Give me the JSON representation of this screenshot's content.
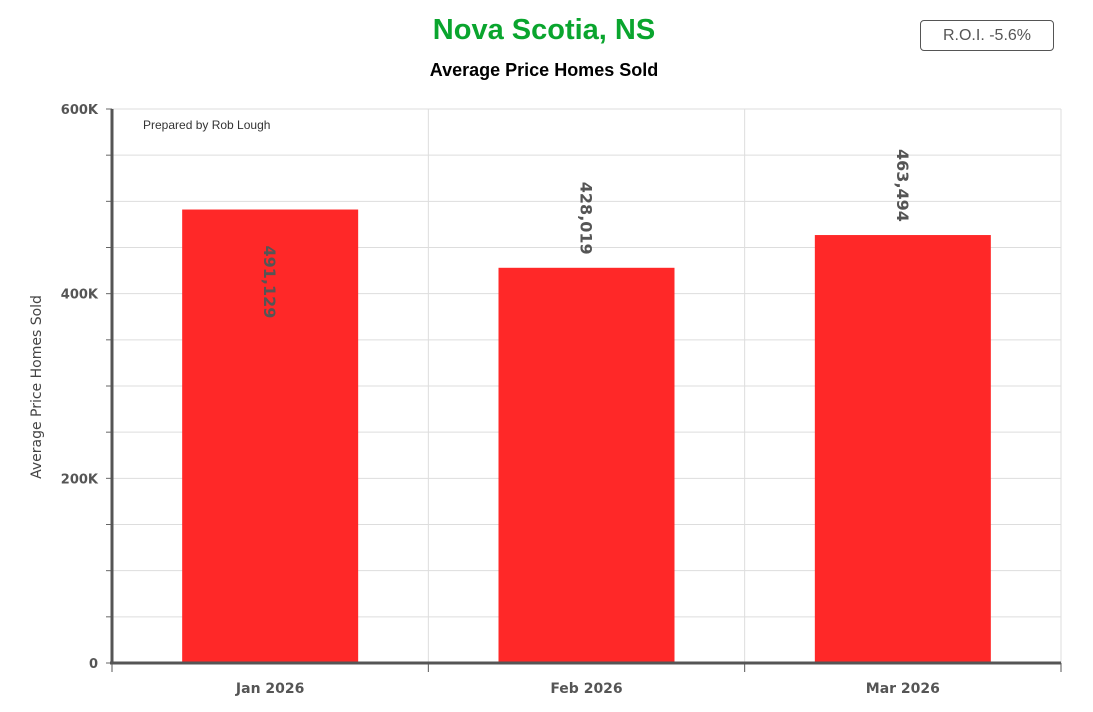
{
  "header": {
    "title": "Nova Scotia, NS",
    "subtitle": "Average Price Homes Sold",
    "roi_badge": "R.O.I. -5.6%"
  },
  "colors": {
    "title": "#0aa52e",
    "bar": "#ff2828"
  },
  "chart_data": {
    "type": "bar",
    "categories": [
      "Jan 2026",
      "Feb 2026",
      "Mar 2026"
    ],
    "values": [
      491129,
      428019,
      463494
    ],
    "value_labels": [
      "491,129",
      "428,019",
      "463,494"
    ],
    "ylabel": "Average Price Homes Sold",
    "ylim": [
      0,
      600000
    ],
    "yticks": [
      0,
      200000,
      400000,
      600000
    ],
    "ytick_labels": [
      "0",
      "200K",
      "400K",
      "600K"
    ],
    "annotation": "Prepared by Rob Lough",
    "grid": true
  }
}
